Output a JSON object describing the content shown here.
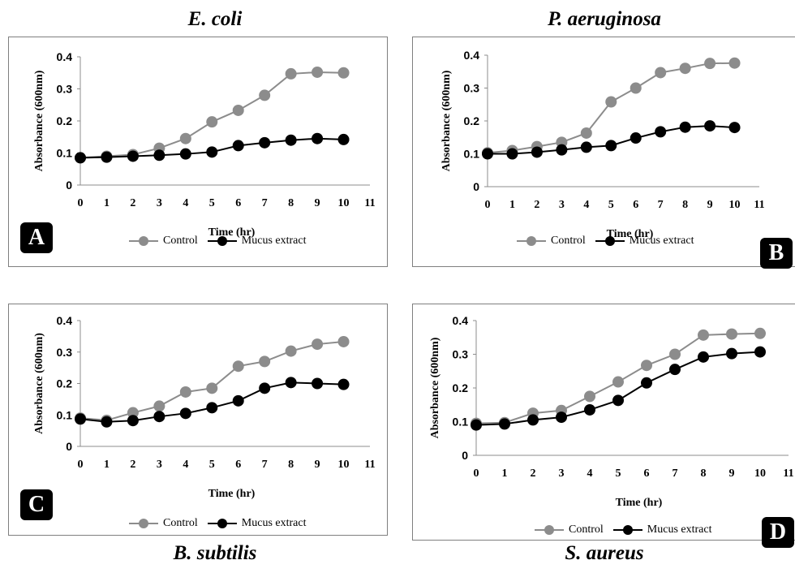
{
  "colors": {
    "control": "#8c8c8c",
    "mucus": "#000000",
    "panel_border": "#7f7f7f"
  },
  "chart_data": [
    {
      "type": "line",
      "title": "E. coli",
      "badge": "A",
      "xlabel": "Time (hr)",
      "ylabel": "Absorbance (600nm)",
      "xlim": [
        0,
        11
      ],
      "ylim": [
        0,
        0.4
      ],
      "x_ticks": [
        "0",
        "1",
        "2",
        "3",
        "4",
        "5",
        "6",
        "7",
        "8",
        "9",
        "10",
        "11"
      ],
      "y_ticks": [
        "0",
        "0.1",
        "0.2",
        "0.3",
        "0.4"
      ],
      "x": [
        0,
        1,
        2,
        3,
        4,
        5,
        6,
        7,
        8,
        9,
        10
      ],
      "series": [
        {
          "name": "Control",
          "values": [
            0.085,
            0.09,
            0.095,
            0.115,
            0.145,
            0.197,
            0.233,
            0.28,
            0.347,
            0.352,
            0.35
          ]
        },
        {
          "name": "Mucus extract",
          "values": [
            0.085,
            0.087,
            0.09,
            0.093,
            0.097,
            0.103,
            0.123,
            0.132,
            0.14,
            0.145,
            0.142
          ]
        }
      ],
      "legend": "bottom",
      "grid": false
    },
    {
      "type": "line",
      "title": "P. aeruginosa",
      "badge": "B",
      "xlabel": "Time (hr)",
      "ylabel": "Absorbance (600nm)",
      "xlim": [
        0,
        11
      ],
      "ylim": [
        0,
        0.4
      ],
      "x_ticks": [
        "0",
        "1",
        "2",
        "3",
        "4",
        "5",
        "6",
        "7",
        "8",
        "9",
        "10",
        "11"
      ],
      "y_ticks": [
        "0",
        "0.1",
        "0.2",
        "0.3",
        "0.4"
      ],
      "x": [
        0,
        1,
        2,
        3,
        4,
        5,
        6,
        7,
        8,
        9,
        10
      ],
      "series": [
        {
          "name": "Control",
          "values": [
            0.103,
            0.11,
            0.122,
            0.135,
            0.163,
            0.258,
            0.3,
            0.347,
            0.36,
            0.375,
            0.376
          ]
        },
        {
          "name": "Mucus extract",
          "values": [
            0.1,
            0.1,
            0.105,
            0.112,
            0.12,
            0.125,
            0.148,
            0.167,
            0.181,
            0.185,
            0.18
          ]
        }
      ],
      "legend": "bottom",
      "grid": false
    },
    {
      "type": "line",
      "title": "B. subtilis",
      "badge": "C",
      "xlabel": "Time (hr)",
      "ylabel": "Absorbance (600nm)",
      "xlim": [
        0,
        11
      ],
      "ylim": [
        0,
        0.4
      ],
      "x_ticks": [
        "0",
        "1",
        "2",
        "3",
        "4",
        "5",
        "6",
        "7",
        "8",
        "9",
        "10",
        "11"
      ],
      "y_ticks": [
        "0",
        "0.1",
        "0.2",
        "0.3",
        "0.4"
      ],
      "x": [
        0,
        1,
        2,
        3,
        4,
        5,
        6,
        7,
        8,
        9,
        10
      ],
      "series": [
        {
          "name": "Control",
          "values": [
            0.09,
            0.083,
            0.107,
            0.128,
            0.173,
            0.185,
            0.255,
            0.27,
            0.303,
            0.325,
            0.333
          ]
        },
        {
          "name": "Mucus extract",
          "values": [
            0.087,
            0.078,
            0.082,
            0.095,
            0.105,
            0.123,
            0.145,
            0.185,
            0.203,
            0.2,
            0.197
          ]
        }
      ],
      "legend": "bottom",
      "grid": false
    },
    {
      "type": "line",
      "title": "S. aureus",
      "badge": "D",
      "xlabel": "Time (hr)",
      "ylabel": "Absorbance (600nm)",
      "xlim": [
        0,
        11
      ],
      "ylim": [
        0,
        0.4
      ],
      "x_ticks": [
        "0",
        "1",
        "2",
        "3",
        "4",
        "5",
        "6",
        "7",
        "8",
        "9",
        "10",
        "11"
      ],
      "y_ticks": [
        "0",
        "0.1",
        "0.2",
        "0.3",
        "0.4"
      ],
      "x": [
        0,
        1,
        2,
        3,
        4,
        5,
        6,
        7,
        8,
        9,
        10
      ],
      "series": [
        {
          "name": "Control",
          "values": [
            0.095,
            0.097,
            0.125,
            0.133,
            0.175,
            0.218,
            0.267,
            0.3,
            0.357,
            0.36,
            0.362
          ]
        },
        {
          "name": "Mucus extract",
          "values": [
            0.09,
            0.093,
            0.105,
            0.113,
            0.135,
            0.163,
            0.215,
            0.255,
            0.292,
            0.302,
            0.307
          ]
        }
      ],
      "legend": "bottom",
      "grid": false
    }
  ]
}
